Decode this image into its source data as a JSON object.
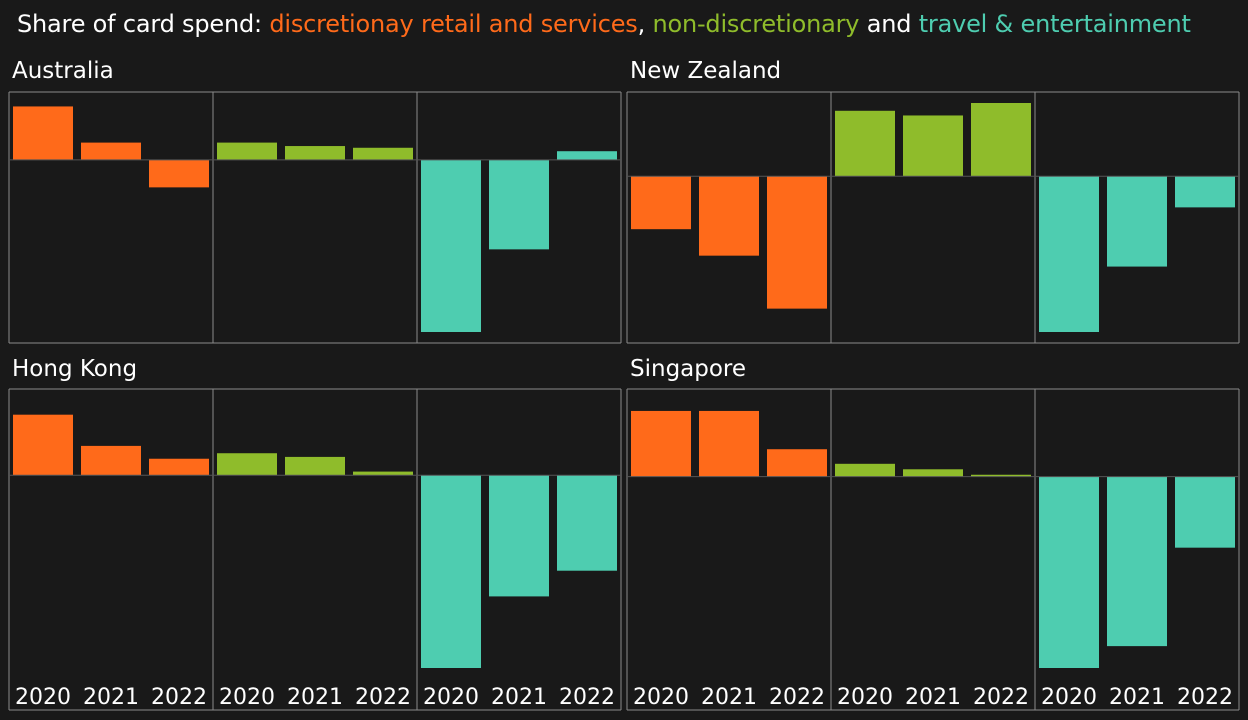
{
  "title": {
    "prefix": "Share of card spend: ",
    "disc": "discretionay retail and services",
    "sep": ", ",
    "nondisc": "non-discretionary",
    "and": " and ",
    "travel": "travel & entertainment"
  },
  "colors": {
    "discretionary": "#ff6a1a",
    "non_discretionary": "#8fbc2b",
    "travel": "#4ecdb0",
    "background": "#191919",
    "grid": "#8a8a8a",
    "text": "#ffffff"
  },
  "chart_data": [
    {
      "type": "bar",
      "title": "Australia",
      "categories": [
        "2020",
        "2021",
        "2022"
      ],
      "ylim": [
        -100,
        33
      ],
      "series": [
        {
          "values": [
            31,
            10,
            -16
          ]
        },
        {
          "values": [
            10,
            8,
            7
          ]
        },
        {
          "values": [
            -100,
            -52,
            5
          ]
        }
      ]
    },
    {
      "type": "bar",
      "title": "New Zealand",
      "categories": [
        "2020",
        "2021",
        "2022"
      ],
      "ylim": [
        -100,
        47
      ],
      "series": [
        {
          "values": [
            -34,
            -51,
            -85
          ]
        },
        {
          "values": [
            42,
            39,
            47
          ]
        },
        {
          "values": [
            -100,
            -58,
            -20
          ]
        }
      ]
    },
    {
      "type": "bar",
      "title": "Hong Kong",
      "categories": [
        "2020",
        "2021",
        "2022"
      ],
      "ylim": [
        -105,
        41
      ],
      "series": [
        {
          "values": [
            33,
            16,
            9
          ]
        },
        {
          "values": [
            12,
            10,
            2
          ]
        },
        {
          "values": [
            -105,
            -66,
            -52
          ]
        }
      ]
    },
    {
      "type": "bar",
      "title": "Singapore",
      "categories": [
        "2020",
        "2021",
        "2022"
      ],
      "ylim": [
        -105,
        42
      ],
      "series": [
        {
          "values": [
            36,
            36,
            15
          ]
        },
        {
          "values": [
            7,
            4,
            1
          ]
        },
        {
          "values": [
            -105,
            -93,
            -39
          ]
        }
      ]
    }
  ]
}
